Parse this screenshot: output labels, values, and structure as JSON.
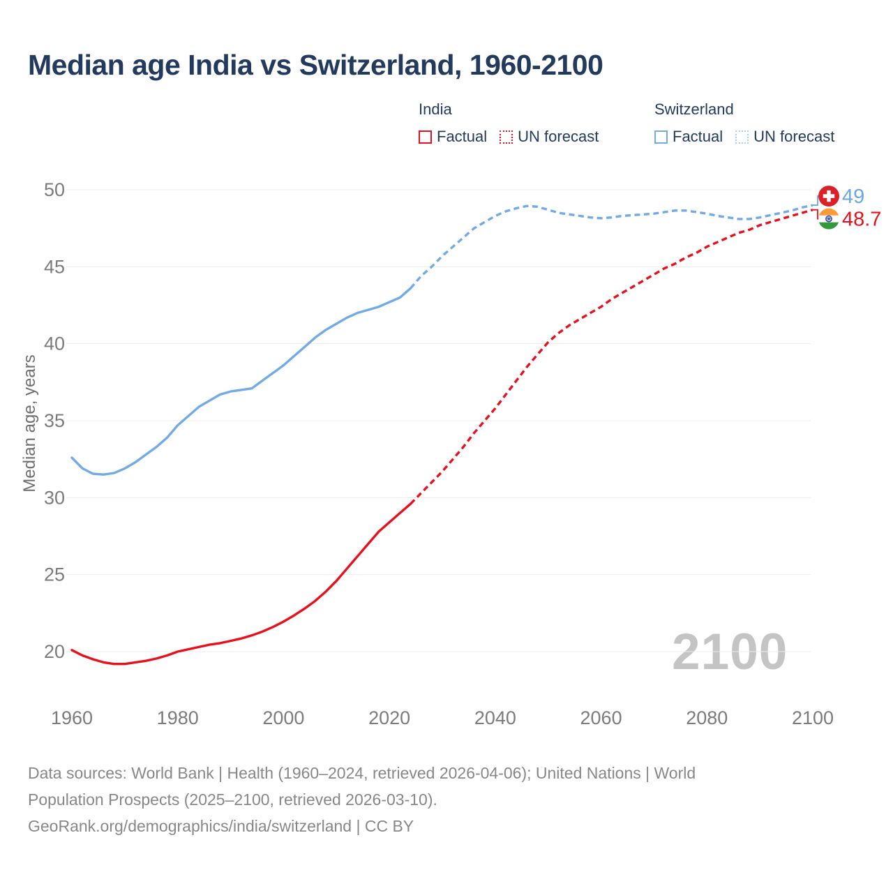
{
  "title": "Median age India vs Switzerland, 1960-2100",
  "legend": {
    "groups": [
      {
        "name": "India",
        "items": [
          {
            "label": "Factual",
            "style": "solid",
            "color": "#e8101c"
          },
          {
            "label": "UN forecast",
            "style": "dotted",
            "color": "#e8101c"
          }
        ]
      },
      {
        "name": "Switzerland",
        "items": [
          {
            "label": "Factual",
            "style": "solid",
            "color": "#72aae3"
          },
          {
            "label": "UN forecast",
            "style": "dotted",
            "color": "#a9cdf0"
          }
        ]
      }
    ]
  },
  "chart_data": {
    "type": "line",
    "title": "Median age India vs Switzerland, 1960-2100",
    "xlabel": "",
    "ylabel": "Median age, years",
    "xlim": [
      1955,
      2112
    ],
    "ylim": [
      18.5,
      51
    ],
    "x_ticks": [
      1960,
      1980,
      2000,
      2020,
      2040,
      2060,
      2080,
      2100
    ],
    "y_ticks": [
      20,
      25,
      30,
      35,
      40,
      45,
      50
    ],
    "grid": "horizontal-only",
    "watermark": "2100",
    "forecast_split_year": 2024,
    "series": [
      {
        "name": "India factual",
        "color": "#e8101c",
        "dash": "solid",
        "points": [
          [
            1960,
            20.1
          ],
          [
            1962,
            19.75
          ],
          [
            1964,
            19.5
          ],
          [
            1966,
            19.3
          ],
          [
            1968,
            19.2
          ],
          [
            1970,
            19.2
          ],
          [
            1972,
            19.3
          ],
          [
            1974,
            19.4
          ],
          [
            1976,
            19.55
          ],
          [
            1978,
            19.75
          ],
          [
            1980,
            20.0
          ],
          [
            1982,
            20.15
          ],
          [
            1984,
            20.3
          ],
          [
            1986,
            20.45
          ],
          [
            1988,
            20.55
          ],
          [
            1990,
            20.7
          ],
          [
            1992,
            20.85
          ],
          [
            1994,
            21.05
          ],
          [
            1996,
            21.3
          ],
          [
            1998,
            21.6
          ],
          [
            2000,
            21.95
          ],
          [
            2002,
            22.35
          ],
          [
            2004,
            22.8
          ],
          [
            2006,
            23.3
          ],
          [
            2008,
            23.9
          ],
          [
            2010,
            24.6
          ],
          [
            2012,
            25.4
          ],
          [
            2014,
            26.2
          ],
          [
            2016,
            27.0
          ],
          [
            2018,
            27.8
          ],
          [
            2020,
            28.4
          ],
          [
            2022,
            29.0
          ],
          [
            2024,
            29.6
          ]
        ]
      },
      {
        "name": "India UN forecast",
        "color": "#e8101c",
        "dash": "dashed",
        "points": [
          [
            2024,
            29.6
          ],
          [
            2026,
            30.3
          ],
          [
            2028,
            31.0
          ],
          [
            2030,
            31.7
          ],
          [
            2032,
            32.5
          ],
          [
            2034,
            33.3
          ],
          [
            2036,
            34.2
          ],
          [
            2038,
            35.0
          ],
          [
            2040,
            35.8
          ],
          [
            2042,
            36.7
          ],
          [
            2044,
            37.6
          ],
          [
            2046,
            38.5
          ],
          [
            2048,
            39.3
          ],
          [
            2050,
            40.1
          ],
          [
            2052,
            40.7
          ],
          [
            2054,
            41.2
          ],
          [
            2056,
            41.6
          ],
          [
            2058,
            42.0
          ],
          [
            2060,
            42.4
          ],
          [
            2062,
            42.9
          ],
          [
            2064,
            43.3
          ],
          [
            2066,
            43.7
          ],
          [
            2068,
            44.1
          ],
          [
            2070,
            44.5
          ],
          [
            2072,
            44.9
          ],
          [
            2074,
            45.2
          ],
          [
            2076,
            45.6
          ],
          [
            2078,
            45.9
          ],
          [
            2080,
            46.3
          ],
          [
            2082,
            46.6
          ],
          [
            2084,
            46.9
          ],
          [
            2086,
            47.2
          ],
          [
            2088,
            47.4
          ],
          [
            2090,
            47.7
          ],
          [
            2092,
            47.9
          ],
          [
            2094,
            48.1
          ],
          [
            2096,
            48.3
          ],
          [
            2098,
            48.5
          ],
          [
            2100,
            48.7
          ]
        ]
      },
      {
        "name": "Switzerland factual",
        "color": "#72aae3",
        "dash": "solid",
        "points": [
          [
            1960,
            32.6
          ],
          [
            1962,
            31.9
          ],
          [
            1964,
            31.55
          ],
          [
            1966,
            31.5
          ],
          [
            1968,
            31.6
          ],
          [
            1970,
            31.9
          ],
          [
            1972,
            32.3
          ],
          [
            1974,
            32.8
          ],
          [
            1976,
            33.3
          ],
          [
            1978,
            33.9
          ],
          [
            1980,
            34.7
          ],
          [
            1982,
            35.3
          ],
          [
            1984,
            35.9
          ],
          [
            1986,
            36.3
          ],
          [
            1988,
            36.7
          ],
          [
            1990,
            36.9
          ],
          [
            1992,
            37.0
          ],
          [
            1994,
            37.1
          ],
          [
            1996,
            37.6
          ],
          [
            1998,
            38.1
          ],
          [
            2000,
            38.6
          ],
          [
            2002,
            39.2
          ],
          [
            2004,
            39.8
          ],
          [
            2006,
            40.4
          ],
          [
            2008,
            40.9
          ],
          [
            2010,
            41.3
          ],
          [
            2012,
            41.7
          ],
          [
            2014,
            42.0
          ],
          [
            2016,
            42.2
          ],
          [
            2018,
            42.4
          ],
          [
            2020,
            42.7
          ],
          [
            2022,
            43.0
          ],
          [
            2024,
            43.6
          ]
        ]
      },
      {
        "name": "Switzerland UN forecast",
        "color": "#72aae3",
        "dash": "dashed",
        "points": [
          [
            2024,
            43.6
          ],
          [
            2026,
            44.4
          ],
          [
            2028,
            45.0
          ],
          [
            2030,
            45.7
          ],
          [
            2032,
            46.3
          ],
          [
            2034,
            46.9
          ],
          [
            2036,
            47.5
          ],
          [
            2038,
            47.9
          ],
          [
            2040,
            48.3
          ],
          [
            2042,
            48.6
          ],
          [
            2044,
            48.8
          ],
          [
            2046,
            48.95
          ],
          [
            2048,
            48.9
          ],
          [
            2050,
            48.7
          ],
          [
            2052,
            48.5
          ],
          [
            2054,
            48.4
          ],
          [
            2056,
            48.3
          ],
          [
            2058,
            48.2
          ],
          [
            2060,
            48.15
          ],
          [
            2062,
            48.2
          ],
          [
            2064,
            48.3
          ],
          [
            2066,
            48.35
          ],
          [
            2068,
            48.4
          ],
          [
            2070,
            48.45
          ],
          [
            2072,
            48.55
          ],
          [
            2074,
            48.65
          ],
          [
            2076,
            48.65
          ],
          [
            2078,
            48.55
          ],
          [
            2080,
            48.45
          ],
          [
            2082,
            48.3
          ],
          [
            2084,
            48.2
          ],
          [
            2086,
            48.1
          ],
          [
            2088,
            48.1
          ],
          [
            2090,
            48.2
          ],
          [
            2092,
            48.35
          ],
          [
            2094,
            48.5
          ],
          [
            2096,
            48.65
          ],
          [
            2098,
            48.85
          ],
          [
            2100,
            49.0
          ]
        ]
      }
    ],
    "end_labels": [
      {
        "series": "Switzerland",
        "text": "49",
        "value": 49.0,
        "year": 2100,
        "color": "#6ba6e4",
        "flag": "switzerland",
        "dir": "up"
      },
      {
        "series": "India",
        "text": "48.7",
        "value": 48.7,
        "year": 2100,
        "color": "#e8101c",
        "flag": "india",
        "dir": "down"
      }
    ],
    "legend_position": "top",
    "axis_text_color": "#7b7b7b",
    "grid_color": "#ececec"
  },
  "footer": {
    "lines": [
      "Data sources: World Bank | Health (1960–2024, retrieved 2026-04-06); United Nations | World",
      "Population Prospects (2025–2100, retrieved 2026-03-10).",
      "GeoRank.org/demographics/india/switzerland | CC BY"
    ]
  },
  "colors": {
    "title": "#223a5e",
    "india_line": "#e8101c",
    "switzerland_line": "#72aae3",
    "watermark": "#c4c4c4",
    "footer_text": "#878787",
    "swiss_flag_red": "#dc2028",
    "india_saffron": "#ff9933",
    "india_green": "#339a3c",
    "india_chakra_navy": "#2b479e"
  }
}
